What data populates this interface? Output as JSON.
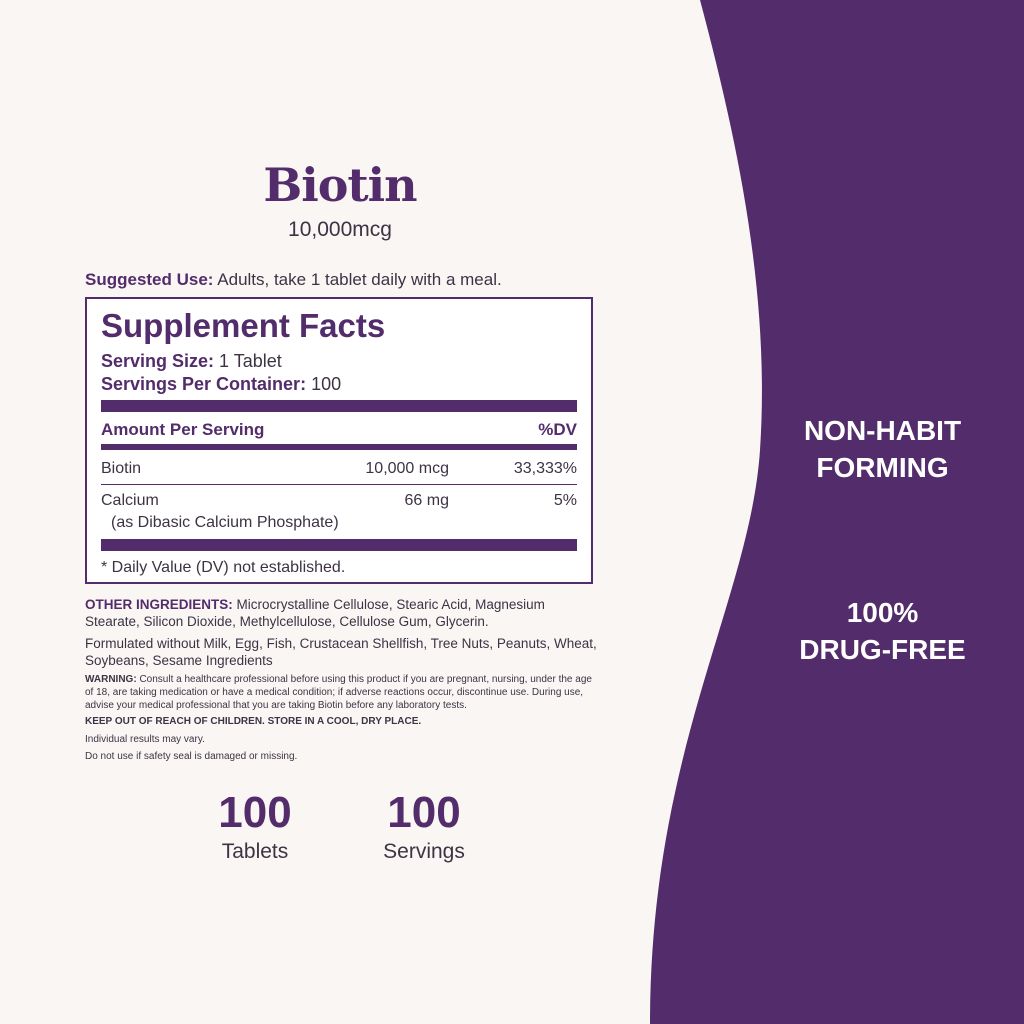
{
  "colors": {
    "brand_purple": "#532c6b",
    "background": "#faf6f4"
  },
  "product": {
    "name": "Biotin",
    "dose": "10,000mcg"
  },
  "suggested_use": {
    "label": "Suggested Use:",
    "text": " Adults, take 1 tablet daily with a meal."
  },
  "facts": {
    "title": "Supplement Facts",
    "serving_size_label": "Serving Size:",
    "serving_size": " 1 Tablet",
    "servings_label": "Servings Per Container:",
    "servings": " 100",
    "header_amount": "Amount Per Serving",
    "header_dv": "%DV",
    "rows": [
      {
        "name": "Biotin",
        "amount": "10,000 mcg",
        "dv": "33,333%"
      },
      {
        "name": "Calcium",
        "sub": "(as Dibasic Calcium Phosphate)",
        "amount": "66 mg",
        "dv": "5%"
      }
    ],
    "footnote": "* Daily Value (DV) not established."
  },
  "other_ingredients": {
    "label": "OTHER INGREDIENTS:",
    "text": " Microcrystalline Cellulose, Stearic Acid, Magnesium Stearate, Silicon Dioxide, Methylcellulose, Cellulose Gum, Glycerin."
  },
  "formulated_without": "Formulated without Milk, Egg, Fish, Crustacean Shellfish, Tree Nuts, Peanuts, Wheat, Soybeans, Sesame Ingredients",
  "warning": {
    "label": "WARNING:",
    "text": " Consult a healthcare professional before using this product if you are pregnant, nursing, under the age of 18, are taking medication or have a medical condition; if adverse reactions occur, discontinue use. During use, advise your medical professional that you are taking Biotin before any laboratory tests."
  },
  "keep_out": "KEEP OUT OF REACH OF CHILDREN. STORE IN A COOL, DRY PLACE.",
  "results": "Individual results may vary.",
  "seal": "Do not use if safety seal is damaged or missing.",
  "counts": [
    {
      "value": "100",
      "label": "Tablets"
    },
    {
      "value": "100",
      "label": "Servings"
    }
  ],
  "claims": [
    {
      "line1": "NON-HABIT",
      "line2": "FORMING"
    },
    {
      "line1": "100%",
      "line2": "DRUG-FREE"
    }
  ]
}
